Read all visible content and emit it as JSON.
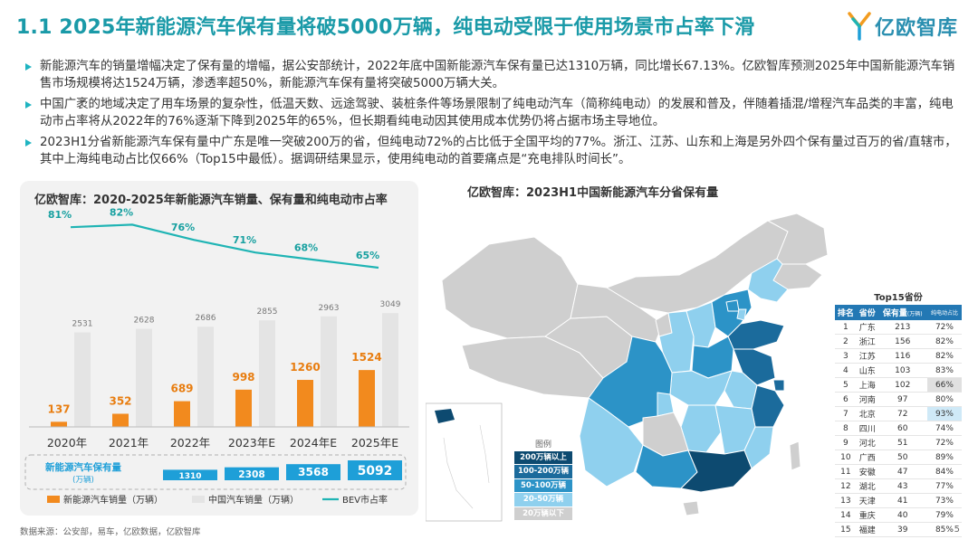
{
  "header": {
    "title": "1.1 2025年新能源汽车保有量将破5000万辆，纯电动受限于使用场景市占率下滑",
    "logo_text": "亿欧智库"
  },
  "bullets": [
    "新能源汽车的销量增幅决定了保有量的增幅，据公安部统计，2022年底中国新能源汽车保有量已达1310万辆，同比增长67.13%。亿欧智库预测2025年中国新能源汽车销售市场规模将达1524万辆，渗透率超50%，新能源汽车保有量将突破5000万辆大关。",
    "中国广袤的地域决定了用车场景的复杂性，低温天数、远途驾驶、装桩条件等场景限制了纯电动汽车（简称纯电动）的发展和普及，伴随着插混/增程汽车品类的丰富，纯电动市占率将从2022年的76%逐渐下降到2025年的65%，但长期看纯电动因其使用成本优势仍将占据市场主导地位。",
    "2023H1分省新能源汽车保有量中广东是唯一突破200万的省，但纯电动72%的占比低于全国平均的77%。浙江、江苏、山东和上海是另外四个保有量过百万的省/直辖市，其中上海纯电动占比仅66%（Top15中最低）。据调研结果显示，使用纯电动的首要痛点是“充电排队时间长”。"
  ],
  "chart_data": [
    {
      "type": "bar",
      "title": "亿欧智库：2020-2025年新能源汽车销量、保有量和纯电动市占率",
      "categories": [
        "2020年",
        "2021年",
        "2022年",
        "2023年E",
        "2024年E",
        "2025年E"
      ],
      "series": [
        {
          "name": "新能源汽车销量（万辆）",
          "type": "bar",
          "values": [
            137,
            352,
            689,
            998,
            1260,
            1524
          ],
          "color": "#f28a1e"
        },
        {
          "name": "中国汽车销量（万辆）",
          "type": "bar",
          "values": [
            2531,
            2628,
            2686,
            2855,
            2963,
            3049
          ],
          "color": "#e4e4e4"
        },
        {
          "name": "BEV市占率",
          "type": "line",
          "values": [
            81,
            82,
            76,
            71,
            68,
            65
          ],
          "labels": [
            "81%",
            "82%",
            "76%",
            "71%",
            "68%",
            "65%"
          ],
          "color": "#1fb4b4"
        }
      ],
      "ownership": {
        "label": "新能源汽车保有量",
        "unit": "(万辆)",
        "values": [
          1310,
          2308,
          3568,
          5092
        ],
        "color": "#1e9fd8"
      },
      "ylim": [
        0,
        3200
      ],
      "legend": "bottom"
    },
    {
      "type": "map",
      "title": "亿欧智库：2023H1中国新能源汽车分省保有量",
      "legend_title": "图例",
      "legend": [
        {
          "label": "200万辆以上",
          "color": "#0d4a70"
        },
        {
          "label": "100-200万辆",
          "color": "#1b6b9c"
        },
        {
          "label": "50-100万辆",
          "color": "#2c93c7"
        },
        {
          "label": "20-50万辆",
          "color": "#8fd0ee"
        },
        {
          "label": "20万辆以下",
          "color": "#cfcfcf"
        }
      ]
    },
    {
      "type": "table",
      "title": "Top15省份",
      "columns": [
        "排名",
        "省份",
        "保有量",
        "(万辆)",
        "纯电动占比"
      ],
      "rows": [
        [
          1,
          "广东",
          213,
          "72%"
        ],
        [
          2,
          "浙江",
          156,
          "82%"
        ],
        [
          3,
          "江苏",
          116,
          "82%"
        ],
        [
          4,
          "山东",
          103,
          "83%"
        ],
        [
          5,
          "上海",
          102,
          "66%"
        ],
        [
          6,
          "河南",
          97,
          "80%"
        ],
        [
          7,
          "北京",
          72,
          "93%"
        ],
        [
          8,
          "四川",
          60,
          "74%"
        ],
        [
          9,
          "河北",
          51,
          "72%"
        ],
        [
          10,
          "广西",
          50,
          "89%"
        ],
        [
          11,
          "安徽",
          47,
          "84%"
        ],
        [
          12,
          "湖北",
          43,
          "77%"
        ],
        [
          13,
          "天津",
          41,
          "73%"
        ],
        [
          14,
          "重庆",
          40,
          "79%"
        ],
        [
          15,
          "福建",
          39,
          "85%"
        ]
      ]
    }
  ],
  "footer": {
    "source": "数据来源：公安部，易车，亿欧数据，亿欧智库",
    "page": "5"
  }
}
